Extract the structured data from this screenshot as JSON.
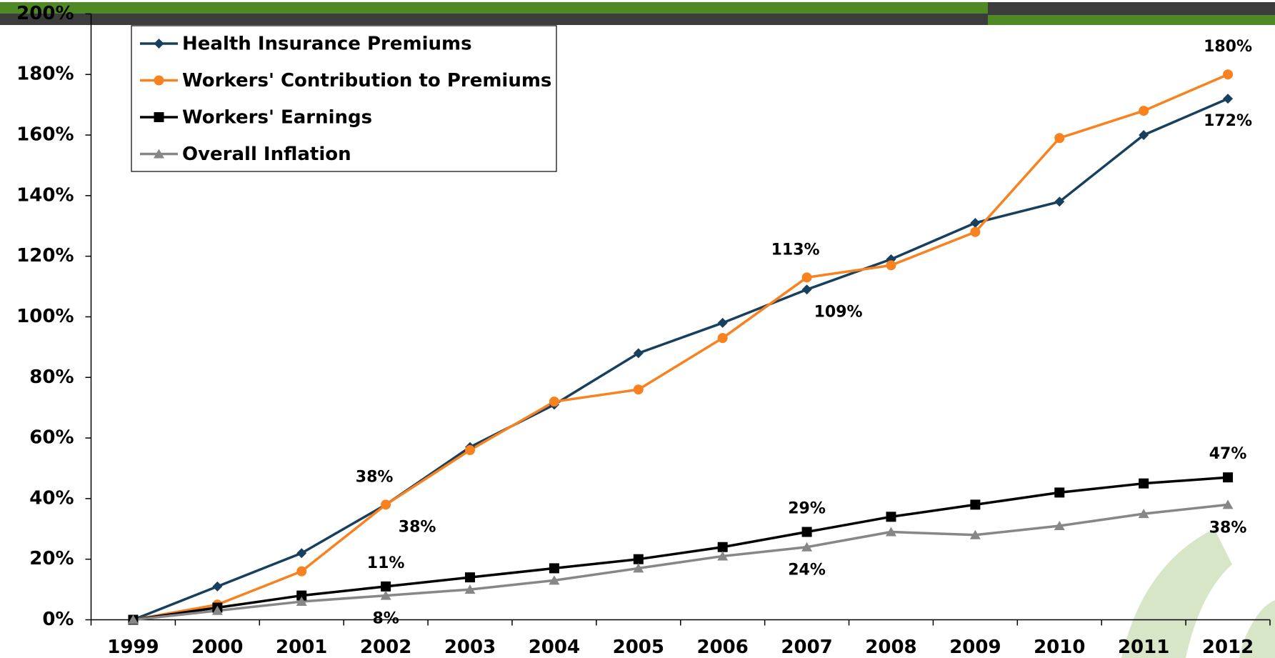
{
  "chart_data": {
    "type": "line",
    "categories": [
      "1999",
      "2000",
      "2001",
      "2002",
      "2003",
      "2004",
      "2005",
      "2006",
      "2007",
      "2008",
      "2009",
      "2010",
      "2011",
      "2012"
    ],
    "series": [
      {
        "name": "Health Insurance Premiums",
        "color": "#17405f",
        "marker": "diamond",
        "values": [
          0,
          11,
          22,
          38,
          57,
          71,
          88,
          98,
          109,
          119,
          131,
          138,
          160,
          172
        ],
        "value_labels": [
          null,
          null,
          null,
          "38%",
          null,
          null,
          null,
          null,
          "109%",
          null,
          null,
          null,
          null,
          "172%"
        ]
      },
      {
        "name": "Workers' Contribution to Premiums",
        "color": "#f7821f",
        "marker": "circle",
        "values": [
          0,
          5,
          16,
          38,
          56,
          72,
          76,
          93,
          113,
          117,
          128,
          159,
          168,
          180
        ],
        "value_labels": [
          null,
          null,
          null,
          "38%",
          null,
          null,
          null,
          null,
          "113%",
          null,
          null,
          null,
          null,
          "180%"
        ]
      },
      {
        "name": "Workers' Earnings",
        "color": "#000000",
        "marker": "square",
        "values": [
          0,
          4,
          8,
          11,
          14,
          17,
          20,
          24,
          29,
          34,
          38,
          42,
          45,
          47
        ],
        "value_labels": [
          null,
          null,
          null,
          "11%",
          null,
          null,
          null,
          null,
          "29%",
          null,
          null,
          null,
          null,
          "47%"
        ]
      },
      {
        "name": "Overall Inflation",
        "color": "#878787",
        "marker": "triangle",
        "values": [
          0,
          3,
          6,
          8,
          10,
          13,
          17,
          21,
          24,
          29,
          28,
          31,
          35,
          38
        ],
        "value_labels": [
          null,
          null,
          null,
          "8%",
          null,
          null,
          null,
          null,
          "24%",
          null,
          null,
          null,
          null,
          "38%"
        ]
      }
    ],
    "ylim": [
      0,
      200
    ],
    "yticks": [
      {
        "value": 0,
        "label": "0%"
      },
      {
        "value": 20,
        "label": "20%"
      },
      {
        "value": 40,
        "label": "40%"
      },
      {
        "value": 60,
        "label": "60%"
      },
      {
        "value": 80,
        "label": "80%"
      },
      {
        "value": 100,
        "label": "100%"
      },
      {
        "value": 120,
        "label": "120%"
      },
      {
        "value": 140,
        "label": "140%"
      },
      {
        "value": 160,
        "label": "160%"
      },
      {
        "value": 180,
        "label": "180%"
      },
      {
        "value": 200,
        "label": "200%"
      }
    ],
    "grid": false,
    "legend": "top-left"
  }
}
